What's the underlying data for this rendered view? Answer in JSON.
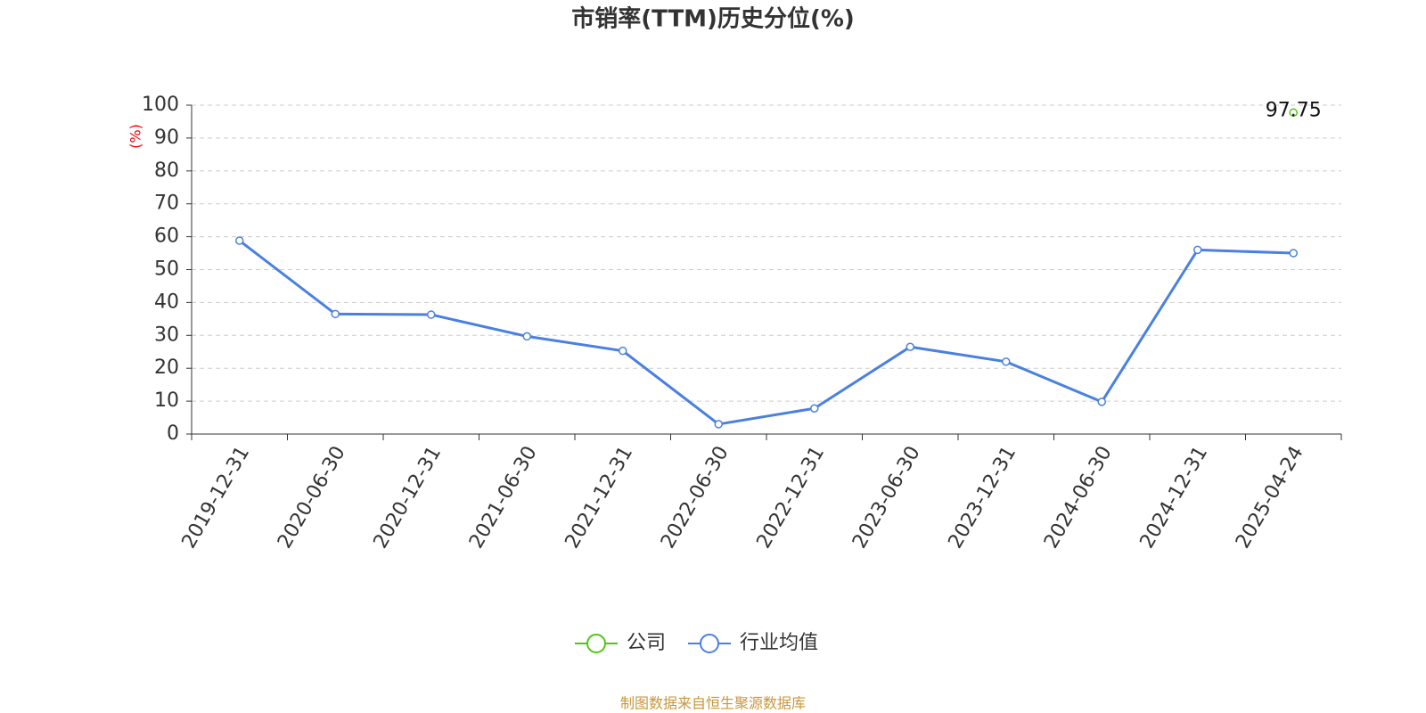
{
  "chart_data": {
    "type": "line",
    "title": "市销率(TTM)历史分位(%)",
    "y_label": "(%)",
    "y_label_color": "#ee0000",
    "categories": [
      "2019-12-31",
      "2020-06-30",
      "2020-12-31",
      "2021-06-30",
      "2021-12-31",
      "2022-06-30",
      "2022-12-31",
      "2023-06-30",
      "2023-12-31",
      "2024-06-30",
      "2024-12-31",
      "2025-04-24"
    ],
    "series": [
      {
        "name": "公司",
        "color": "#52c41a",
        "show_labels": true,
        "values": [
          null,
          null,
          null,
          null,
          null,
          null,
          null,
          null,
          null,
          null,
          null,
          97.75
        ]
      },
      {
        "name": "行业均值",
        "color": "#4a80e0",
        "show_labels": false,
        "values": [
          58.8,
          36.5,
          36.3,
          29.7,
          25.3,
          3.0,
          7.8,
          26.5,
          22.0,
          9.8,
          56.0,
          55.0
        ]
      }
    ],
    "ylim": [
      0,
      100
    ],
    "yticks": [
      0,
      10,
      20,
      30,
      40,
      50,
      60,
      70,
      80,
      90,
      100
    ],
    "grid": true,
    "source": "制图数据来自恒生聚源数据库"
  }
}
